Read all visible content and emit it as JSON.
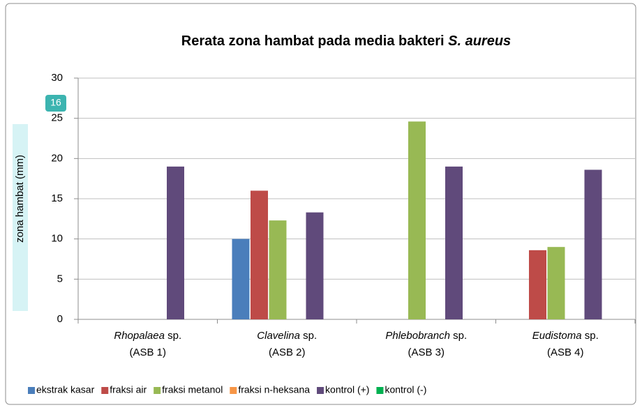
{
  "chart_data": {
    "type": "bar",
    "title": "Rerata zona hambat pada media bakteri S. aureus",
    "ylabel": "zona hambat (mm)",
    "annotation": "16",
    "categories": [
      "Rhopalaea sp. (ASB 1)",
      "Clavelina sp. (ASB 2)",
      "Phlebobranch sp. (ASB 3)",
      "Eudistoma sp. (ASB 4)"
    ],
    "series": [
      {
        "name": "ekstrak kasar",
        "color": "#4a7ebb",
        "values": [
          null,
          10,
          null,
          null
        ]
      },
      {
        "name": "fraksi air",
        "color": "#be4b48",
        "values": [
          null,
          16,
          null,
          8.6
        ]
      },
      {
        "name": "fraksi metanol",
        "color": "#98b954",
        "values": [
          null,
          12.3,
          24.6,
          9
        ]
      },
      {
        "name": "fraksi n-heksana",
        "color": "#f79646",
        "values": [
          null,
          null,
          null,
          null
        ]
      },
      {
        "name": "kontrol (+)",
        "color": "#604a7b",
        "values": [
          19,
          13.3,
          19,
          18.6
        ]
      },
      {
        "name": "kontrol (-)",
        "color": "#00b050",
        "values": [
          null,
          null,
          null,
          null
        ]
      }
    ],
    "ylim": [
      0,
      30
    ],
    "yticks": [
      0,
      5,
      10,
      15,
      20,
      25,
      30
    ],
    "grid": true,
    "legend": "bottom"
  }
}
